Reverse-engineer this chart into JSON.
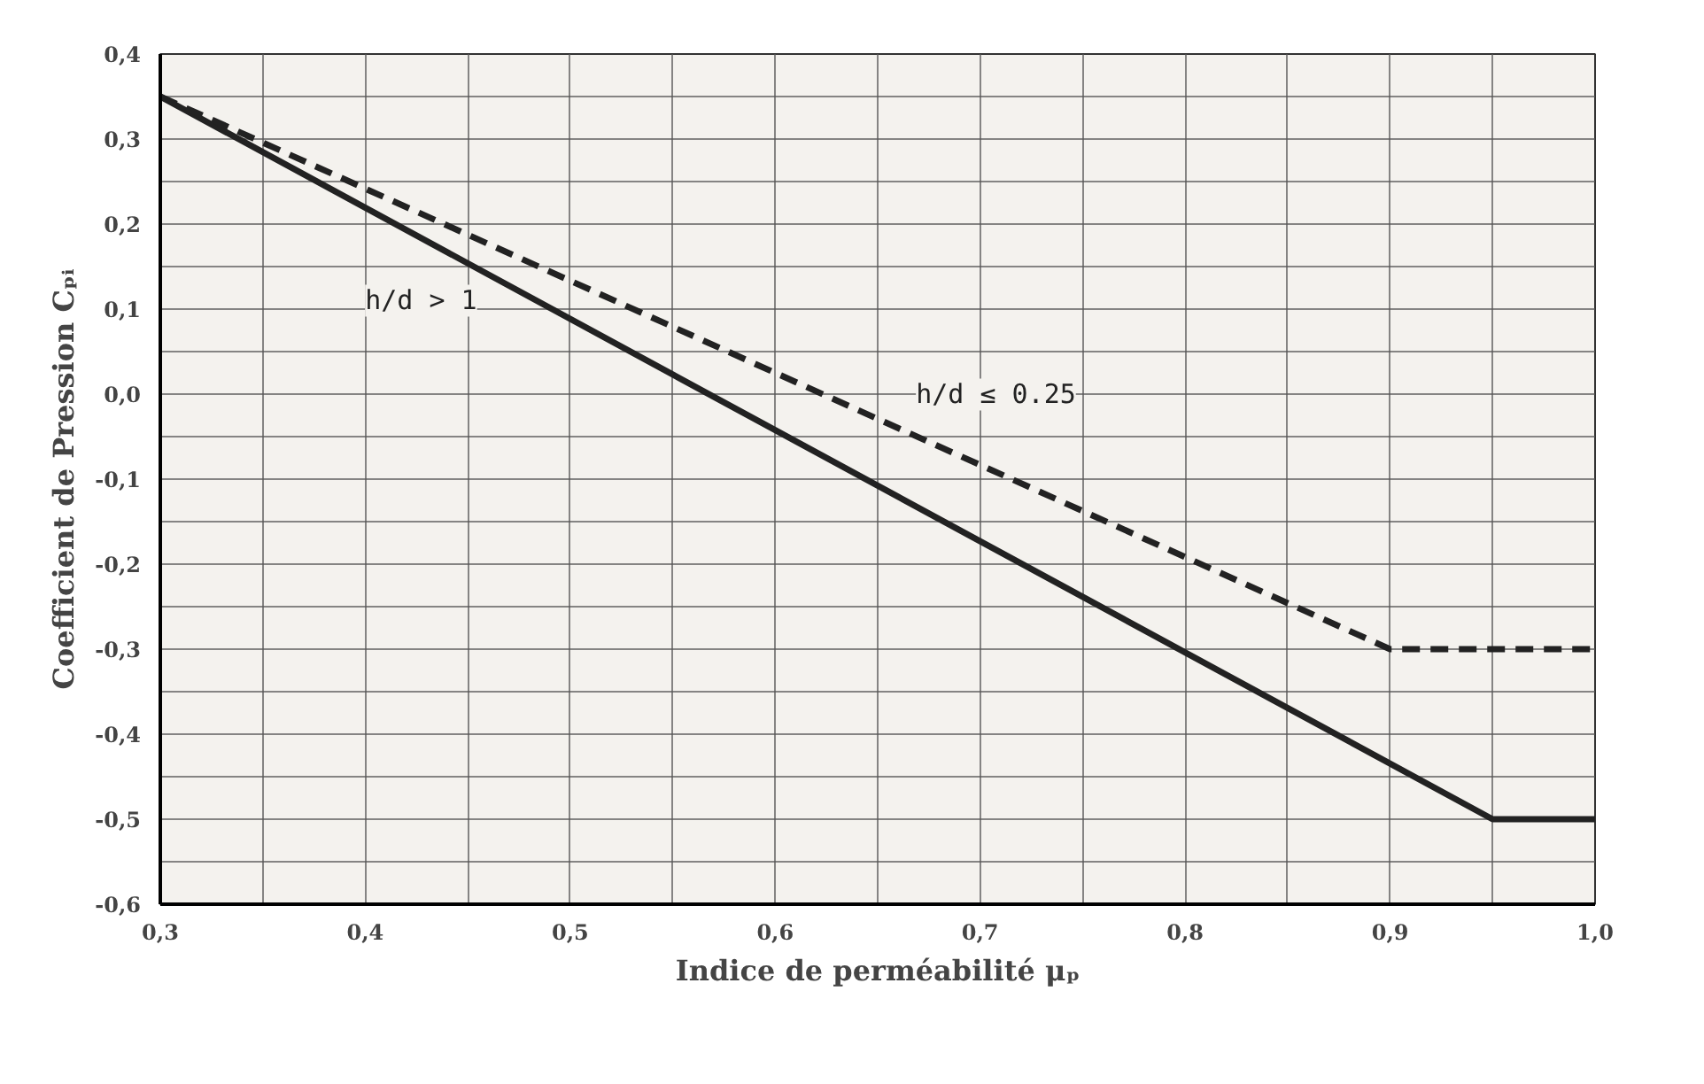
{
  "chart_data": {
    "type": "line",
    "xlabel": "Indice de perméabilité μₚ",
    "ylabel": "Coefficient de Pression Cₚᵢ",
    "series": [
      {
        "name": "h/d > 1",
        "color": "#222222",
        "line_style": "solid",
        "x": [
          0.3,
          0.95,
          1.0
        ],
        "values": [
          0.35,
          -0.5,
          -0.5
        ]
      },
      {
        "name": "h/d ≤ 0.25",
        "color": "#222222",
        "line_style": "dashed",
        "x": [
          0.3,
          0.9,
          1.0
        ],
        "values": [
          0.35,
          -0.3,
          -0.3
        ]
      }
    ],
    "xlim": [
      0.3,
      1.0
    ],
    "ylim": [
      -0.6,
      0.4
    ],
    "xticks": [
      {
        "value": 0.3,
        "label": "0,3"
      },
      {
        "value": 0.35,
        "label": null
      },
      {
        "value": 0.4,
        "label": "0,4"
      },
      {
        "value": 0.45,
        "label": null
      },
      {
        "value": 0.5,
        "label": "0,5"
      },
      {
        "value": 0.55,
        "label": null
      },
      {
        "value": 0.6,
        "label": "0,6"
      },
      {
        "value": 0.65,
        "label": null
      },
      {
        "value": 0.7,
        "label": "0,7"
      },
      {
        "value": 0.75,
        "label": null
      },
      {
        "value": 0.8,
        "label": "0,8"
      },
      {
        "value": 0.85,
        "label": null
      },
      {
        "value": 0.9,
        "label": "0,9"
      },
      {
        "value": 0.95,
        "label": null
      },
      {
        "value": 1.0,
        "label": "1,0"
      }
    ],
    "yticks": [
      {
        "value": -0.6,
        "label": "-0,6"
      },
      {
        "value": -0.55,
        "label": null
      },
      {
        "value": -0.5,
        "label": "-0,5"
      },
      {
        "value": -0.45,
        "label": null
      },
      {
        "value": -0.4,
        "label": "-0,4"
      },
      {
        "value": -0.35,
        "label": null
      },
      {
        "value": -0.3,
        "label": "-0,3"
      },
      {
        "value": -0.25,
        "label": null
      },
      {
        "value": -0.2,
        "label": "-0,2"
      },
      {
        "value": -0.15,
        "label": null
      },
      {
        "value": -0.1,
        "label": "-0,1"
      },
      {
        "value": -0.05,
        "label": null
      },
      {
        "value": 0.0,
        "label": "0,0"
      },
      {
        "value": 0.05,
        "label": null
      },
      {
        "value": 0.1,
        "label": "0,1"
      },
      {
        "value": 0.15,
        "label": null
      },
      {
        "value": 0.2,
        "label": "0,2"
      },
      {
        "value": 0.25,
        "label": null
      },
      {
        "value": 0.3,
        "label": "0,3"
      },
      {
        "value": 0.35,
        "label": null
      },
      {
        "value": 0.4,
        "label": "0,4"
      }
    ],
    "grid": true,
    "marker": "none"
  }
}
